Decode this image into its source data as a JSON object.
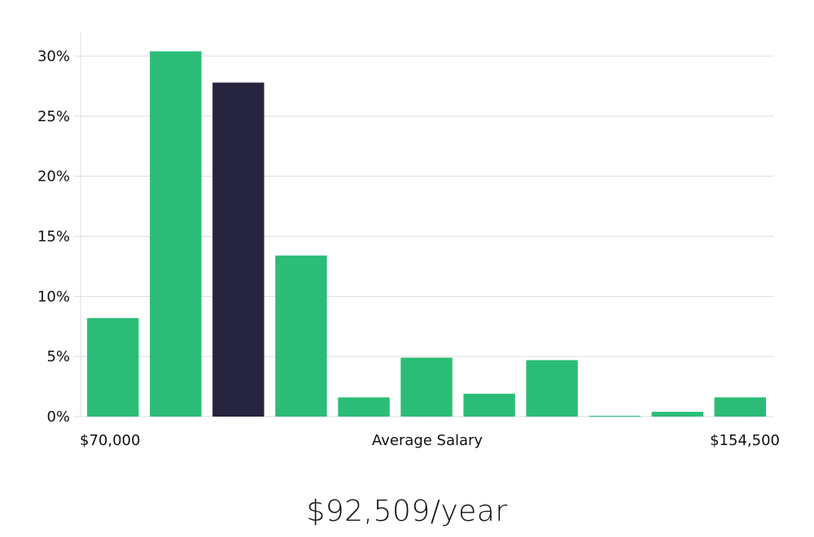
{
  "chart_data": {
    "type": "bar",
    "categories": [
      "1",
      "2",
      "3",
      "4",
      "5",
      "6",
      "7",
      "8",
      "9",
      "10",
      "11"
    ],
    "values": [
      8.2,
      30.4,
      27.8,
      13.4,
      1.6,
      4.9,
      1.9,
      4.7,
      0.05,
      0.4,
      1.6
    ],
    "highlight_index": 2,
    "colors": {
      "bar": "#2bbd78",
      "highlight": "#26243f"
    },
    "ylim": [
      0,
      32
    ],
    "yticks": [
      0,
      5,
      10,
      15,
      20,
      25,
      30
    ],
    "ytick_suffix": "%",
    "grid": true,
    "x_labels": {
      "left": "$70,000",
      "center": "Average Salary",
      "right": "$154,500"
    }
  },
  "salary": {
    "value": "$92,509/year"
  }
}
